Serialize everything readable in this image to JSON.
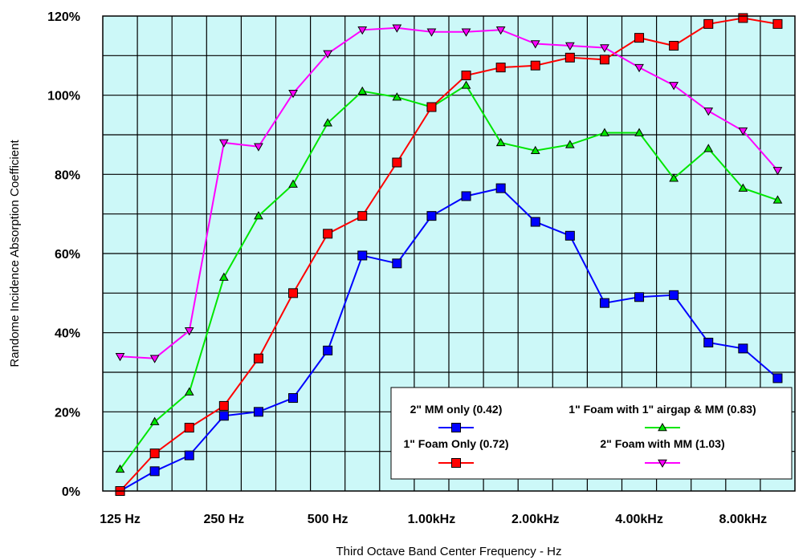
{
  "chart_data": {
    "type": "line",
    "title": "",
    "xlabel": "Third Octave Band Center Frequency - Hz",
    "ylabel": "Randome Incidence Absorption Coefficient",
    "x": [
      125,
      160,
      200,
      250,
      315,
      400,
      500,
      630,
      800,
      1000,
      1250,
      1600,
      2000,
      2500,
      3150,
      4000,
      5000,
      6300,
      8000,
      10000
    ],
    "x_scale": "log",
    "x_tick_labels": [
      {
        "at": 125,
        "label": "125 Hz"
      },
      {
        "at": 250,
        "label": "250 Hz"
      },
      {
        "at": 500,
        "label": "500 Hz"
      },
      {
        "at": 1000,
        "label": "1.00kHz"
      },
      {
        "at": 2000,
        "label": "2.00kHz"
      },
      {
        "at": 4000,
        "label": "4.00kHz"
      },
      {
        "at": 8000,
        "label": "8.00kHz"
      }
    ],
    "ylim": [
      0,
      120
    ],
    "y_ticks": [
      0,
      20,
      40,
      60,
      80,
      100,
      120
    ],
    "y_tick_labels": [
      "0%",
      "20%",
      "40%",
      "60%",
      "80%",
      "100%",
      "120%"
    ],
    "grid": true,
    "plot_background": "#ccf8f8",
    "legend_position": "bottom-right",
    "series": [
      {
        "name": "2\" MM only (0.42)",
        "color": "#0000ff",
        "marker": "square",
        "values": [
          0,
          5,
          9,
          19,
          20,
          23.5,
          35.5,
          59.5,
          57.5,
          69.5,
          74.5,
          76.5,
          68,
          64.5,
          47.5,
          49,
          49.5,
          37.5,
          36,
          28.5
        ]
      },
      {
        "name": "1\" Foam with 1\" airgap & MM (0.83)",
        "color": "#00e600",
        "marker": "triangle-up",
        "values": [
          5.5,
          17.5,
          25,
          54,
          69.5,
          77.5,
          93,
          101,
          99.5,
          97,
          102.5,
          88,
          86,
          87.5,
          90.5,
          90.5,
          79,
          86.5,
          76.5,
          73.5
        ]
      },
      {
        "name": "1\" Foam Only (0.72)",
        "color": "#ff0000",
        "marker": "square",
        "values": [
          0,
          9.5,
          16,
          21.5,
          33.5,
          50,
          65,
          69.5,
          83,
          97,
          105,
          107,
          107.5,
          109.5,
          109,
          114.5,
          112.5,
          118,
          119.5,
          118
        ]
      },
      {
        "name": "2\" Foam with MM (1.03)",
        "color": "#ff00ff",
        "marker": "triangle-down",
        "values": [
          34,
          33.5,
          40.5,
          88,
          87,
          100.5,
          110.5,
          116.5,
          117,
          116,
          116,
          116.5,
          113,
          112.5,
          112,
          107,
          102.5,
          96,
          91,
          81
        ]
      }
    ]
  }
}
